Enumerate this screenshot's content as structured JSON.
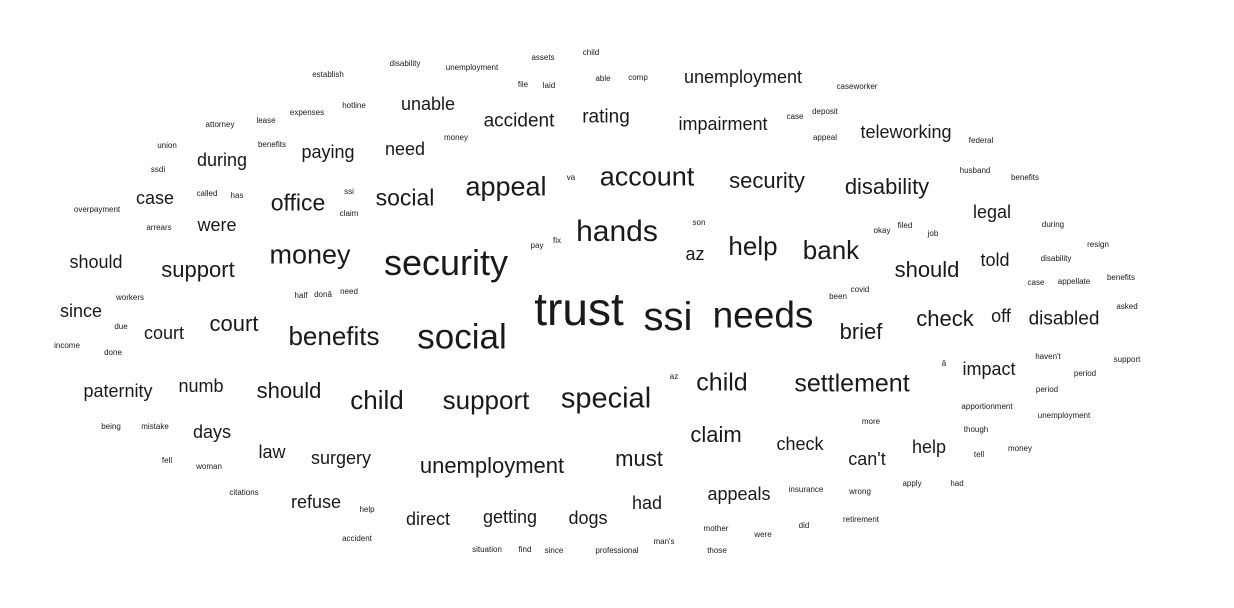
{
  "words": [
    "trust",
    "ssi",
    "needs",
    "security",
    "social",
    "hands",
    "account",
    "appeal",
    "money",
    "social",
    "benefits",
    "child",
    "special",
    "settlement",
    "support",
    "bank",
    "help",
    "child",
    "disability",
    "should",
    "office",
    "support",
    "court",
    "security",
    "claim",
    "unemployment",
    "unemployment",
    "impairment",
    "teleworking",
    "accident",
    "rating",
    "unable",
    "should",
    "check",
    "disabled",
    "brief",
    "paying",
    "need",
    "case",
    "during",
    "were",
    "should",
    "since",
    "court",
    "paternity",
    "numb",
    "days",
    "law",
    "surgery",
    "must",
    "check",
    "can't",
    "help",
    "appeals",
    "had",
    "getting",
    "dogs",
    "direct",
    "refuse",
    "impact",
    "legal",
    "told",
    "off",
    "az",
    "establish",
    "disability",
    "unemployment",
    "assets",
    "child",
    "file",
    "laid",
    "able",
    "comp",
    "caseworker",
    "attorney",
    "lease",
    "expenses",
    "hotline",
    "money",
    "case",
    "deposit",
    "appeal",
    "federal",
    "union",
    "benefits",
    "ssdi",
    "husband",
    "benefits",
    "called",
    "has",
    "ssi",
    "claim",
    "va",
    "overpayment",
    "arrears",
    "son",
    "okay",
    "filed",
    "job",
    "during",
    "pay",
    "fix",
    "resign",
    "disability",
    "case",
    "appellate",
    "benefits",
    "covid",
    "been",
    "half",
    "donâ",
    "need",
    "workers",
    "asked",
    "due",
    "income",
    "done",
    "haven't",
    "support",
    "â",
    "az",
    "period",
    "period",
    "apportionment",
    "more",
    "unemployment",
    "though",
    "being",
    "mistake",
    "tell",
    "money",
    "fell",
    "woman",
    "apply",
    "had",
    "insurance",
    "wrong",
    "citations",
    "help",
    "retirement",
    "mother",
    "did",
    "were",
    "accident",
    "man's",
    "situation",
    "find",
    "since",
    "professional",
    "those"
  ]
}
